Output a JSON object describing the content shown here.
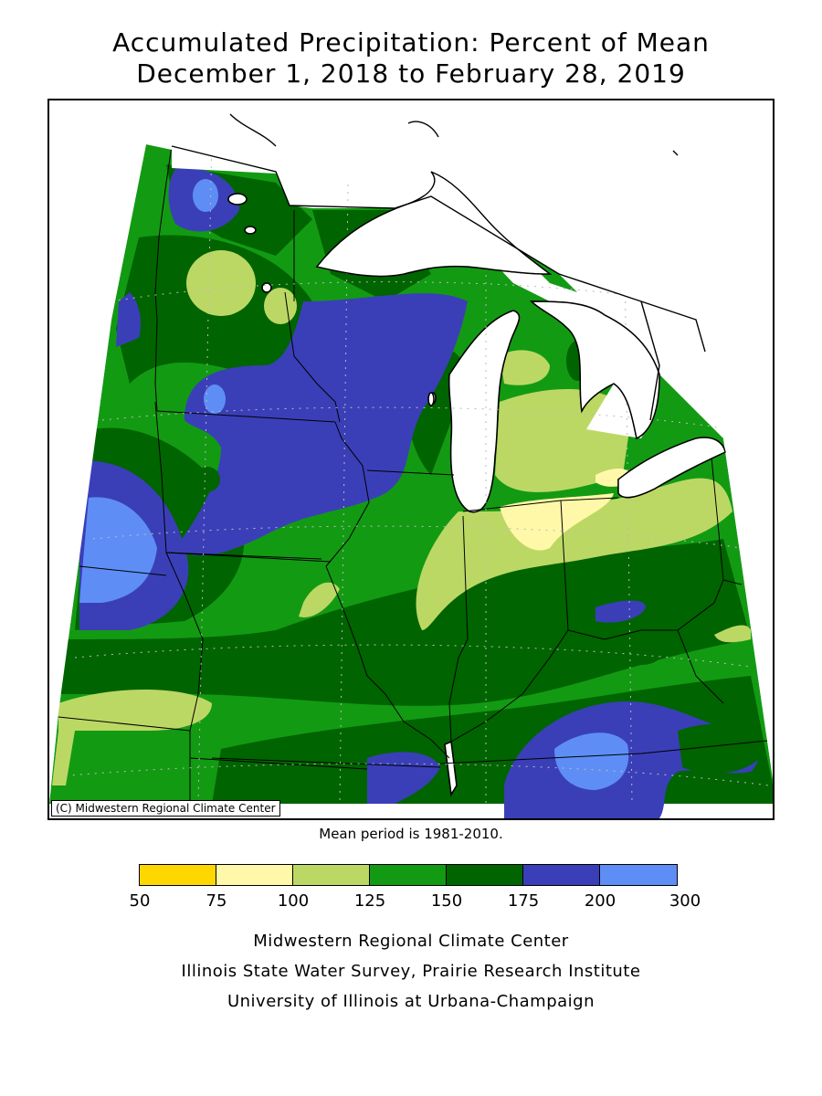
{
  "title": {
    "line1": "Accumulated Precipitation: Percent of Mean",
    "line2": "December 1, 2018 to February 28, 2019"
  },
  "map": {
    "copyright": "(C) Midwestern Regional Climate Center",
    "region": "Upper Midwest / Great Lakes"
  },
  "mean_period": "Mean period is 1981-2010.",
  "legend": {
    "bins": [
      {
        "from": "50",
        "to": "75",
        "color": "#FFD700"
      },
      {
        "from": "75",
        "to": "100",
        "color": "#FFF8A8"
      },
      {
        "from": "100",
        "to": "125",
        "color": "#BCD864"
      },
      {
        "from": "125",
        "to": "150",
        "color": "#139A13"
      },
      {
        "from": "150",
        "to": "175",
        "color": "#006400"
      },
      {
        "from": "175",
        "to": "200",
        "color": "#3A3FB8"
      },
      {
        "from": "200",
        "to": "300",
        "color": "#5E8EF5"
      }
    ],
    "tick_labels": [
      "50",
      "75",
      "100",
      "125",
      "150",
      "175",
      "200",
      "300"
    ]
  },
  "credits": [
    "Midwestern Regional Climate Center",
    "Illinois State Water Survey, Prairie Research Institute",
    "University of Illinois at Urbana-Champaign"
  ]
}
